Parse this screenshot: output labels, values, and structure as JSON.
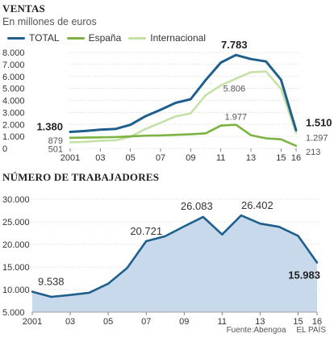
{
  "chart_data": [
    {
      "type": "line",
      "title": "VENTAS",
      "subtitle": "En millones de euros",
      "x": [
        2001,
        2002,
        2003,
        2004,
        2005,
        2006,
        2007,
        2008,
        2009,
        2010,
        2011,
        2012,
        2013,
        2014,
        2015,
        2016
      ],
      "xticks": [
        "2001",
        "03",
        "05",
        "07",
        "09",
        "11",
        "13",
        "15",
        "16"
      ],
      "xtick_values": [
        2001,
        2003,
        2005,
        2007,
        2009,
        2011,
        2013,
        2015,
        2016
      ],
      "ylim": [
        0,
        8000
      ],
      "yticks": [
        0,
        1000,
        2000,
        3000,
        4000,
        5000,
        6000,
        7000,
        8000
      ],
      "ytick_labels": [
        "0",
        "1.000",
        "2.000",
        "3.000",
        "4.000",
        "5.000",
        "6.000",
        "7.000",
        "8.000"
      ],
      "grid": true,
      "legend": "top-left",
      "series": [
        {
          "name": "TOTAL",
          "color": "#1f5f8e",
          "values": [
            1380,
            1450,
            1560,
            1620,
            1970,
            2680,
            3220,
            3800,
            4100,
            5700,
            7150,
            7783,
            7450,
            7250,
            5730,
            1510
          ]
        },
        {
          "name": "España",
          "color": "#7cb342",
          "values": [
            879,
            900,
            920,
            950,
            1000,
            1060,
            1080,
            1130,
            1180,
            1260,
            1900,
            1977,
            1100,
            840,
            760,
            213
          ]
        },
        {
          "name": "Internacional",
          "color": "#c5e1a5",
          "values": [
            501,
            550,
            640,
            670,
            970,
            1620,
            2140,
            2670,
            2920,
            4440,
            5250,
            5806,
            6350,
            6410,
            4970,
            1297
          ]
        }
      ],
      "annotations": [
        {
          "x": 2001,
          "text": "1.380"
        },
        {
          "x": 2001,
          "text": "879"
        },
        {
          "x": 2001,
          "text": "501"
        },
        {
          "x": 2012,
          "text": "7.783"
        },
        {
          "x": 2012,
          "text": "5.806"
        },
        {
          "x": 2012,
          "text": "1.977"
        },
        {
          "x": 2016,
          "text": "1.510"
        },
        {
          "x": 2016,
          "text": "1.297"
        },
        {
          "x": 2016,
          "text": "213"
        }
      ]
    },
    {
      "type": "area",
      "title": "NÚMERO DE TRABAJADORES",
      "x": [
        2001,
        2002,
        2003,
        2004,
        2005,
        2006,
        2007,
        2008,
        2009,
        2010,
        2011,
        2012,
        2013,
        2014,
        2015,
        2016
      ],
      "xticks": [
        "2001",
        "03",
        "05",
        "07",
        "09",
        "11",
        "13",
        "15",
        "16"
      ],
      "xtick_values": [
        2001,
        2003,
        2005,
        2007,
        2009,
        2011,
        2013,
        2015,
        2016
      ],
      "ylim": [
        5000,
        30000
      ],
      "yticks": [
        5000,
        10000,
        15000,
        20000,
        25000,
        30000
      ],
      "ytick_labels": [
        "5.000",
        "10.000",
        "15.000",
        "20.000",
        "25.000",
        "30.000"
      ],
      "grid": true,
      "series": [
        {
          "color": "#1f5f8e",
          "fill": "#c7d9eb",
          "values": [
            9538,
            8400,
            8800,
            9300,
            11300,
            14800,
            20721,
            21800,
            24000,
            26083,
            22200,
            26402,
            24600,
            23900,
            21900,
            15983
          ]
        }
      ],
      "annotations": [
        {
          "x": 2001,
          "text": "9.538"
        },
        {
          "x": 2007,
          "text": "20.721"
        },
        {
          "x": 2010,
          "text": "26.083"
        },
        {
          "x": 2012,
          "text": "26.402"
        },
        {
          "x": 2016,
          "text": "15.983"
        }
      ]
    }
  ],
  "footer": {
    "source": "Fuente:Abengoa",
    "credit": "EL PAÍS"
  }
}
